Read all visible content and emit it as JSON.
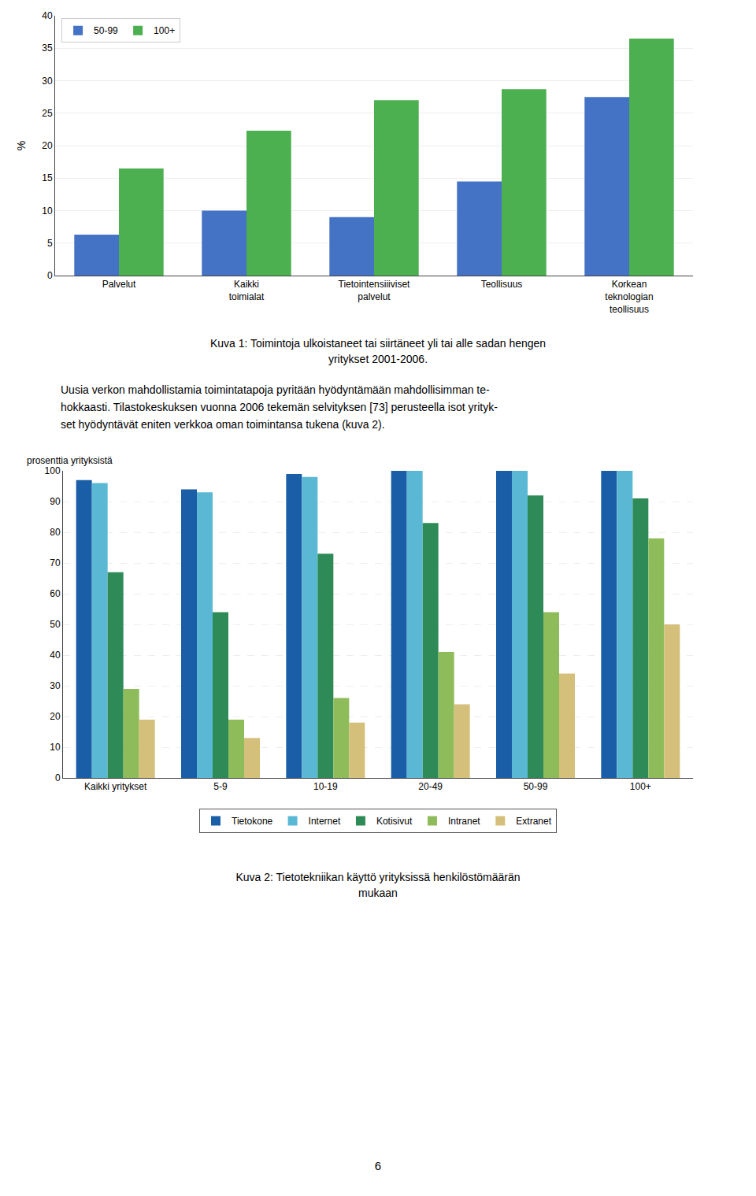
{
  "chart_data": [
    {
      "type": "bar",
      "title": "Kuva 1: Toimintoja ulkoistaneet tai siirtäneet yli tai alle sadan hengen\nyritykset 2001-2006.",
      "categories": [
        "Palvelut",
        "Kaikki\ntoimialat",
        "Tietointensiiiviset\npalvelut",
        "Teollisuus",
        "Korkean\nteknologian\nteollisuus"
      ],
      "series": [
        {
          "name": "50-99",
          "color": "#4472C4",
          "values": [
            6.3,
            10.0,
            9.0,
            14.5,
            27.5
          ]
        },
        {
          "name": "100+",
          "color": "#4CAF50",
          "values": [
            16.5,
            22.3,
            27.0,
            28.7,
            36.5
          ]
        }
      ],
      "ylabel": "%",
      "ylim": [
        0,
        40
      ],
      "yticks": [
        0,
        5,
        10,
        15,
        20,
        25,
        30,
        35,
        40
      ],
      "grid": true,
      "legend": "upper left"
    },
    {
      "type": "bar",
      "title": "Kuva 2: Tietotekniikan käyttö yrityksissä  henkilöstömäärän\nmukaan",
      "categories": [
        "Kaikki yritykset",
        "5-9",
        "10-19",
        "20-49",
        "50-99",
        "100+"
      ],
      "series": [
        {
          "name": "Tietokone",
          "color": "#1A5EA8",
          "values": [
            97,
            94,
            99,
            100,
            100,
            100
          ]
        },
        {
          "name": "Internet",
          "color": "#5BB8D4",
          "values": [
            96,
            93,
            98,
            100,
            100,
            100
          ]
        },
        {
          "name": "Kotisivut",
          "color": "#2E8B57",
          "values": [
            67,
            54,
            73,
            83,
            92,
            91
          ]
        },
        {
          "name": "Intranet",
          "color": "#8FBC5A",
          "values": [
            29,
            19,
            26,
            41,
            54,
            78
          ]
        },
        {
          "name": "Extranet",
          "color": "#D4C07A",
          "values": [
            19,
            13,
            18,
            24,
            34,
            50
          ]
        }
      ],
      "ylabel": "prosenttia yrityksistä",
      "ylim": [
        0,
        100
      ],
      "yticks": [
        0,
        10,
        20,
        30,
        40,
        50,
        60,
        70,
        80,
        90,
        100
      ],
      "grid": true,
      "legend": "bottom"
    }
  ],
  "body_text": [
    "Uusia verkon mahdollistamia toimintatapoja pyritään hyödyntämään mahdollisimman te-",
    "hokkaasti. Tilastokeskuksen vuonna 2006 tekemän selvityksen [73] perusteella isot yrityk-",
    "set hyödyntävät eniten verkkoa oman toimintansa tukena (kuva 2)."
  ],
  "page_number": "6"
}
